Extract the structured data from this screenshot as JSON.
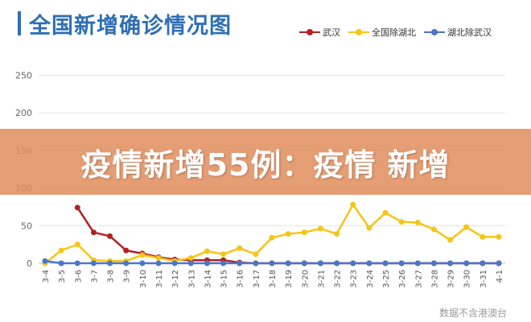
{
  "title": "全国新增确诊情况图",
  "banner": "疫情新增55例：疫情 新增",
  "watermark": "数据不含港澳台",
  "colors": {
    "wuhan": "#b22222",
    "national_ex_hubei": "#f5c518",
    "hubei_ex_wuhan": "#4a76c7",
    "title": "#2f6fb4",
    "banner": "#e08c5a"
  },
  "chart_data": {
    "type": "line",
    "title": "全国新增确诊情况图",
    "xlabel": "",
    "ylabel": "",
    "ylim": [
      0,
      275
    ],
    "yticks": [
      0,
      50,
      100,
      150,
      200,
      250
    ],
    "grid": true,
    "legend": "top-right",
    "x": [
      "3-4",
      "3-5",
      "3-6",
      "3-7",
      "3-8",
      "3-9",
      "3-10",
      "3-11",
      "3-12",
      "3-13",
      "3-14",
      "3-15",
      "3-16",
      "3-17",
      "3-18",
      "3-19",
      "3-20",
      "3-21",
      "3-22",
      "3-23",
      "3-24",
      "3-25",
      "3-26",
      "3-27",
      "3-28",
      "3-29",
      "3-30",
      "3-31",
      "4-1"
    ],
    "series": [
      {
        "name": "武汉",
        "values": [
          null,
          null,
          74,
          41,
          36,
          17,
          13,
          8,
          5,
          4,
          4,
          4,
          1,
          0,
          0,
          0,
          0,
          0,
          0,
          0,
          0,
          0,
          0,
          0,
          0,
          0,
          0,
          0,
          0
        ]
      },
      {
        "name": "全国除湖北",
        "values": [
          0,
          17,
          25,
          4,
          3,
          3,
          11,
          7,
          3,
          7,
          16,
          12,
          20,
          12,
          34,
          39,
          41,
          46,
          39,
          78,
          47,
          67,
          55,
          54,
          45,
          31,
          48,
          35,
          35
        ]
      },
      {
        "name": "湖北除武汉",
        "values": [
          3,
          0,
          0,
          0,
          0,
          0,
          0,
          0,
          0,
          0,
          0,
          0,
          0,
          0,
          0,
          0,
          0,
          0,
          0,
          0,
          0,
          0,
          0,
          0,
          0,
          0,
          0,
          0,
          0
        ]
      }
    ]
  }
}
